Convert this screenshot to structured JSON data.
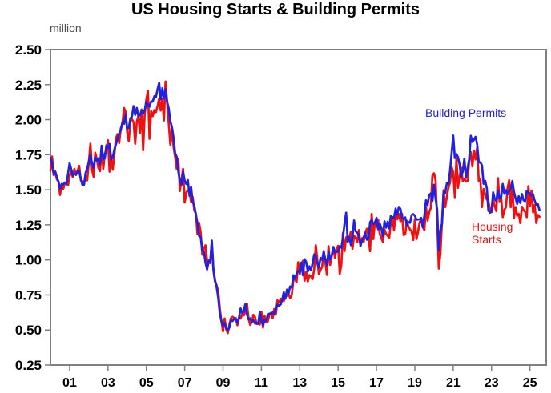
{
  "chart_data": {
    "type": "line",
    "title": "US Housing Starts & Building Permits",
    "unit_label": "million",
    "frequency": "monthly",
    "x_start": 2000,
    "points_per_year": 12,
    "xlim": [
      2000,
      2025.85
    ],
    "ylim": [
      0.25,
      2.5
    ],
    "grid": false,
    "legend_position": "inline-annotations",
    "axis_color": "#7f7f7f",
    "tick_label_color": "#000000",
    "y_ticks": [
      0.25,
      0.5,
      0.75,
      1.0,
      1.25,
      1.5,
      1.75,
      2.0,
      2.25,
      2.5
    ],
    "x_ticks": [
      {
        "year": 2001,
        "label": "01"
      },
      {
        "year": 2003,
        "label": "03"
      },
      {
        "year": 2005,
        "label": "05"
      },
      {
        "year": 2007,
        "label": "07"
      },
      {
        "year": 2009,
        "label": "09"
      },
      {
        "year": 2011,
        "label": "11"
      },
      {
        "year": 2013,
        "label": "13"
      },
      {
        "year": 2015,
        "label": "15"
      },
      {
        "year": 2017,
        "label": "17"
      },
      {
        "year": 2019,
        "label": "19"
      },
      {
        "year": 2021,
        "label": "21"
      },
      {
        "year": 2023,
        "label": "23"
      },
      {
        "year": 2025,
        "label": "25"
      }
    ],
    "series": [
      {
        "name": "Housing Starts",
        "color": "#ee1111",
        "values": [
          1.636,
          1.737,
          1.604,
          1.626,
          1.575,
          1.559,
          1.463,
          1.541,
          1.507,
          1.549,
          1.551,
          1.532,
          1.6,
          1.625,
          1.59,
          1.649,
          1.605,
          1.636,
          1.67,
          1.567,
          1.562,
          1.54,
          1.602,
          1.568,
          1.698,
          1.829,
          1.642,
          1.592,
          1.764,
          1.717,
          1.655,
          1.633,
          1.804,
          1.648,
          1.753,
          1.788,
          1.853,
          1.629,
          1.726,
          1.643,
          1.751,
          1.867,
          1.897,
          1.833,
          1.939,
          1.967,
          2.083,
          2.057,
          1.911,
          1.846,
          1.998,
          2.003,
          1.981,
          1.828,
          1.988,
          2.024,
          1.905,
          2.072,
          1.782,
          2.042,
          2.144,
          2.207,
          1.864,
          2.061,
          2.025,
          2.068,
          2.054,
          2.095,
          2.151,
          2.065,
          2.147,
          1.994,
          2.273,
          2.119,
          1.969,
          1.821,
          1.942,
          1.802,
          1.737,
          1.65,
          1.72,
          1.491,
          1.57,
          1.649,
          1.409,
          1.48,
          1.495,
          1.49,
          1.415,
          1.448,
          1.354,
          1.33,
          1.183,
          1.264,
          1.197,
          1.037,
          1.084,
          1.103,
          0.993,
          1.001,
          0.979,
          1.12,
          0.923,
          0.844,
          0.82,
          0.777,
          0.655,
          0.56,
          0.49,
          0.582,
          0.505,
          0.478,
          0.54,
          0.585,
          0.594,
          0.586,
          0.585,
          0.534,
          0.588,
          0.581,
          0.614,
          0.604,
          0.636,
          0.687,
          0.58,
          0.536,
          0.555,
          0.608,
          0.594,
          0.543,
          0.545,
          0.539,
          0.63,
          0.517,
          0.6,
          0.554,
          0.561,
          0.608,
          0.623,
          0.585,
          0.65,
          0.61,
          0.711,
          0.694,
          0.723,
          0.718,
          0.706,
          0.747,
          0.744,
          0.754,
          0.728,
          0.749,
          0.854,
          0.863,
          0.842,
          0.983,
          0.898,
          0.969,
          0.994,
          0.852,
          0.915,
          0.846,
          0.891,
          0.883,
          0.863,
          0.936,
          1.105,
          0.999,
          0.897,
          0.928,
          0.95,
          1.063,
          0.984,
          0.893,
          1.098,
          0.964,
          1.028,
          1.092,
          1.015,
          1.081,
          1.101,
          0.9,
          0.964,
          1.192,
          1.063,
          1.161,
          1.158,
          1.165,
          1.202,
          1.079,
          1.171,
          1.16,
          1.128,
          1.213,
          1.113,
          1.155,
          1.128,
          1.195,
          1.222,
          1.164,
          1.062,
          1.328,
          1.149,
          1.268,
          1.236,
          1.288,
          1.189,
          1.154,
          1.129,
          1.217,
          1.185,
          1.172,
          1.158,
          1.265,
          1.303,
          1.21,
          1.334,
          1.29,
          1.327,
          1.276,
          1.329,
          1.177,
          1.184,
          1.279,
          1.237,
          1.217,
          1.204,
          1.142,
          1.291,
          1.149,
          1.199,
          1.27,
          1.28,
          1.235,
          1.212,
          1.377,
          1.28,
          1.34,
          1.371,
          1.601,
          1.617,
          1.567,
          1.269,
          0.938,
          1.046,
          1.273,
          1.497,
          1.376,
          1.448,
          1.514,
          1.551,
          1.661,
          1.625,
          1.447,
          1.725,
          1.514,
          1.594,
          1.657,
          1.562,
          1.576,
          1.559,
          1.563,
          1.706,
          1.768,
          1.666,
          1.777,
          1.716,
          1.805,
          1.562,
          1.575,
          1.377,
          1.505,
          1.465,
          1.432,
          1.419,
          1.357,
          1.34,
          1.436,
          1.38,
          1.348,
          1.583,
          1.418,
          1.451,
          1.305,
          1.356,
          1.376,
          1.51,
          1.568,
          1.376,
          1.546,
          1.299,
          1.377,
          1.315,
          1.329,
          1.262,
          1.379,
          1.355,
          1.344,
          1.305,
          1.526,
          1.382,
          1.494,
          1.339,
          1.392,
          1.263,
          1.321,
          1.307
        ]
      },
      {
        "name": "Building Permits",
        "color": "#2222dd",
        "values": [
          1.727,
          1.692,
          1.611,
          1.63,
          1.59,
          1.558,
          1.51,
          1.54,
          1.537,
          1.552,
          1.54,
          1.614,
          1.69,
          1.648,
          1.603,
          1.613,
          1.608,
          1.634,
          1.63,
          1.577,
          1.535,
          1.536,
          1.621,
          1.649,
          1.703,
          1.748,
          1.687,
          1.657,
          1.73,
          1.707,
          1.724,
          1.684,
          1.814,
          1.721,
          1.723,
          1.817,
          1.8,
          1.826,
          1.716,
          1.732,
          1.788,
          1.824,
          1.87,
          1.9,
          1.925,
          1.982,
          1.97,
          2.04,
          1.937,
          1.942,
          2.009,
          2.023,
          2.097,
          2.034,
          2.083,
          2.023,
          2.033,
          2.063,
          2.046,
          2.068,
          2.127,
          2.098,
          2.093,
          2.131,
          2.129,
          2.167,
          2.161,
          2.216,
          2.263,
          2.144,
          2.225,
          2.15,
          2.217,
          2.127,
          2.079,
          1.99,
          1.946,
          1.87,
          1.763,
          1.735,
          1.63,
          1.564,
          1.535,
          1.628,
          1.566,
          1.541,
          1.569,
          1.457,
          1.52,
          1.413,
          1.389,
          1.322,
          1.261,
          1.17,
          1.162,
          1.068,
          1.061,
          0.98,
          0.932,
          0.991,
          0.978,
          1.138,
          0.937,
          0.857,
          0.806,
          0.73,
          0.616,
          0.564,
          0.531,
          0.55,
          0.511,
          0.498,
          0.518,
          0.57,
          0.564,
          0.58,
          0.575,
          0.551,
          0.589,
          0.653,
          0.622,
          0.637,
          0.685,
          0.61,
          0.576,
          0.583,
          0.559,
          0.571,
          0.547,
          0.552,
          0.544,
          0.627,
          0.563,
          0.534,
          0.574,
          0.563,
          0.609,
          0.617,
          0.617,
          0.625,
          0.61,
          0.644,
          0.683,
          0.672,
          0.682,
          0.715,
          0.769,
          0.723,
          0.788,
          0.76,
          0.811,
          0.801,
          0.89,
          0.868,
          0.9,
          0.919,
          0.915,
          0.981,
          0.89,
          1.005,
          0.985,
          0.918,
          0.954,
          0.926,
          0.975,
          1.039,
          1.017,
          0.976,
          0.945,
          1.014,
          1.0,
          1.059,
          1.005,
          0.963,
          1.057,
          1.003,
          1.031,
          1.092,
          1.052,
          1.058,
          1.06,
          1.098,
          1.086,
          1.157,
          1.26,
          1.337,
          1.13,
          1.161,
          1.105,
          1.161,
          1.282,
          1.204,
          1.193,
          1.18,
          1.1,
          1.139,
          1.163,
          1.193,
          1.144,
          1.152,
          1.27,
          1.285,
          1.255,
          1.266,
          1.3,
          1.219,
          1.26,
          1.228,
          1.168,
          1.275,
          1.23,
          1.272,
          1.225,
          1.316,
          1.303,
          1.3,
          1.366,
          1.323,
          1.377,
          1.364,
          1.301,
          1.292,
          1.303,
          1.249,
          1.27,
          1.265,
          1.32,
          1.326,
          1.316,
          1.287,
          1.288,
          1.29,
          1.299,
          1.232,
          1.317,
          1.425,
          1.391,
          1.461,
          1.474,
          1.42,
          1.536,
          1.438,
          1.356,
          1.066,
          1.212,
          1.258,
          1.483,
          1.476,
          1.545,
          1.544,
          1.635,
          1.758,
          1.886,
          1.726,
          1.755,
          1.733,
          1.683,
          1.594,
          1.63,
          1.721,
          1.586,
          1.653,
          1.717,
          1.885,
          1.841,
          1.857,
          1.877,
          1.823,
          1.695,
          1.696,
          1.674,
          1.542,
          1.564,
          1.512,
          1.351,
          1.337,
          1.354,
          1.482,
          1.437,
          1.417,
          1.496,
          1.441,
          1.443,
          1.541,
          1.471,
          1.498,
          1.467,
          1.493,
          1.508,
          1.563,
          1.485,
          1.44,
          1.399,
          1.454,
          1.406,
          1.47,
          1.425,
          1.419,
          1.493,
          1.482,
          1.473,
          1.459,
          1.467,
          1.422,
          1.394,
          1.397,
          1.354
        ]
      }
    ]
  }
}
